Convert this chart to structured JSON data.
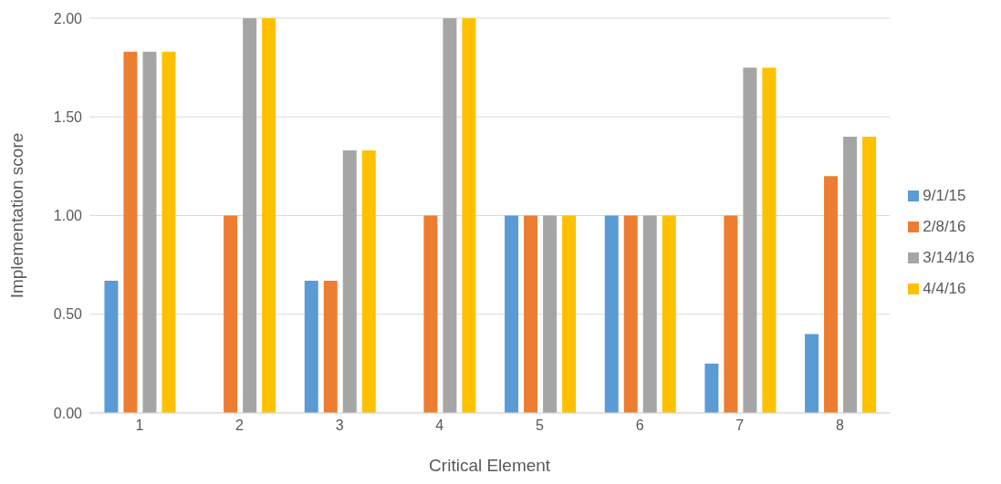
{
  "chart_data": {
    "type": "bar",
    "xlabel": "Critical Element",
    "ylabel": "Implementation score",
    "categories": [
      "1",
      "2",
      "3",
      "4",
      "5",
      "6",
      "7",
      "8"
    ],
    "series": [
      {
        "name": "9/1/15",
        "color": "#5b9bd5",
        "values": [
          0.67,
          0,
          0.67,
          0,
          1,
          1,
          0.25,
          0.4
        ]
      },
      {
        "name": "2/8/16",
        "color": "#ed7d31",
        "values": [
          1.83,
          1,
          0.67,
          1,
          1,
          1,
          1,
          1.2
        ]
      },
      {
        "name": "3/14/16",
        "color": "#a5a5a5",
        "values": [
          1.83,
          2,
          1.33,
          2,
          1,
          1,
          1.75,
          1.4
        ]
      },
      {
        "name": "4/4/16",
        "color": "#ffc000",
        "values": [
          1.83,
          2,
          1.33,
          2,
          1,
          1,
          1.75,
          1.4
        ]
      }
    ],
    "ylim": [
      0,
      2
    ],
    "yticks": [
      {
        "value": 0,
        "label": "0.00"
      },
      {
        "value": 0.5,
        "label": "0.50"
      },
      {
        "value": 1,
        "label": "1.00"
      },
      {
        "value": 1.5,
        "label": "1.50"
      },
      {
        "value": 2,
        "label": "2.00"
      }
    ],
    "grid": "y",
    "legend": "right"
  }
}
